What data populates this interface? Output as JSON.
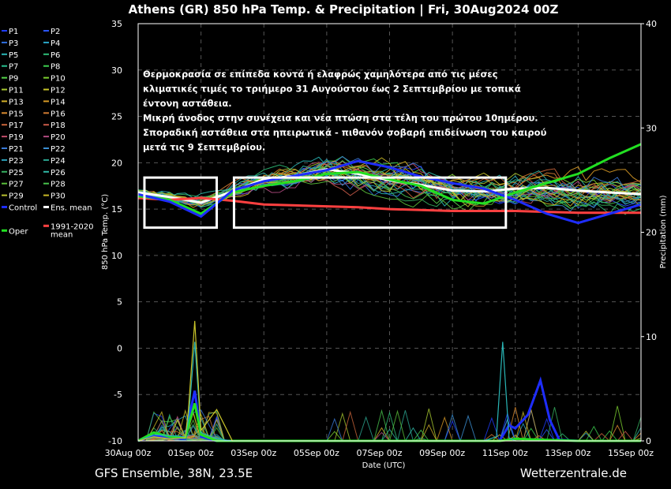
{
  "chart_data": {
    "type": "line",
    "title": "Athens  (GR)  850 hPa Temp. & Precipitation | Fri, 30Aug2024 00Z",
    "xlabel": "Date (UTC)",
    "ylabel": "850 hPa Temp. (°C)",
    "y2label": "Precipitation (mm)",
    "ylim": [
      -10,
      35
    ],
    "y2lim": [
      0,
      40
    ],
    "yticks": [
      "35",
      "30",
      "25",
      "20",
      "15",
      "10",
      "5",
      "0",
      "-5",
      "-10"
    ],
    "y2ticks": [
      "40",
      "30",
      "20",
      "10",
      "0"
    ],
    "xlim_days": [
      0,
      16
    ],
    "xticks": [
      "30Aug 00z",
      "01Sep 00z",
      "03Sep 00z",
      "05Sep 00z",
      "07Sep 00z",
      "09Sep 00z",
      "11Sep 00z",
      "13Sep 00z",
      "15Sep 00z"
    ],
    "grid": true,
    "legend": {
      "placement": "left",
      "entries": [
        {
          "name": "P1",
          "color": "#1f3dff"
        },
        {
          "name": "P2",
          "color": "#2a55ff"
        },
        {
          "name": "P3",
          "color": "#2f6fe0"
        },
        {
          "name": "P4",
          "color": "#2aa8c8"
        },
        {
          "name": "P5",
          "color": "#29b6b6"
        },
        {
          "name": "P6",
          "color": "#2ebd77"
        },
        {
          "name": "P7",
          "color": "#28c090"
        },
        {
          "name": "P8",
          "color": "#3ccf4f"
        },
        {
          "name": "P9",
          "color": "#55d64a"
        },
        {
          "name": "P10",
          "color": "#7ccf2f"
        },
        {
          "name": "P11",
          "color": "#a8c830"
        },
        {
          "name": "P12",
          "color": "#c9c52a"
        },
        {
          "name": "P13",
          "color": "#d2b028"
        },
        {
          "name": "P14",
          "color": "#d89a26"
        },
        {
          "name": "P15",
          "color": "#d98a2e"
        },
        {
          "name": "P16",
          "color": "#d07a32"
        },
        {
          "name": "P17",
          "color": "#c8643a"
        },
        {
          "name": "P18",
          "color": "#c85a48"
        },
        {
          "name": "P19",
          "color": "#c04d6a"
        },
        {
          "name": "P20",
          "color": "#b04a80"
        },
        {
          "name": "P21",
          "color": "#3a7ad8"
        },
        {
          "name": "P22",
          "color": "#3b8fd2"
        },
        {
          "name": "P23",
          "color": "#2b9fb8"
        },
        {
          "name": "P24",
          "color": "#2aa590"
        },
        {
          "name": "P25",
          "color": "#36b060"
        },
        {
          "name": "P26",
          "color": "#2fb8a6"
        },
        {
          "name": "P27",
          "color": "#5abf3a"
        },
        {
          "name": "P28",
          "color": "#48c24c"
        },
        {
          "name": "P29",
          "color": "#b8c030"
        },
        {
          "name": "P30",
          "color": "#c8b826"
        },
        {
          "name": "Control",
          "color": "#1e2dff"
        },
        {
          "name": "Ens. mean",
          "color": "#ffffff"
        },
        {
          "name": "Oper",
          "color": "#22e022"
        },
        {
          "name": "1991-2020 mean",
          "color": "#ff4040"
        }
      ]
    },
    "series": [
      {
        "name": "Ens. mean",
        "kind": "temp",
        "x": [
          0,
          1,
          2,
          3,
          4,
          5,
          6,
          7,
          8,
          9,
          10,
          11,
          12,
          13,
          14,
          15,
          16
        ],
        "y": [
          16.8,
          16.3,
          15.7,
          16.9,
          18.2,
          18.6,
          19.3,
          18.8,
          18.1,
          17.6,
          17.0,
          16.9,
          17.2,
          17.3,
          17.0,
          16.8,
          16.6
        ]
      },
      {
        "name": "1991-2020 mean",
        "kind": "temp",
        "x": [
          0,
          1,
          2,
          3,
          4,
          5,
          6,
          7,
          8,
          9,
          10,
          11,
          12,
          13,
          14,
          15,
          16
        ],
        "y": [
          16.2,
          16.0,
          16.2,
          15.9,
          15.5,
          15.4,
          15.3,
          15.2,
          15.0,
          14.9,
          14.8,
          14.8,
          14.8,
          14.7,
          14.6,
          14.6,
          14.6
        ]
      },
      {
        "name": "Oper",
        "kind": "temp",
        "x": [
          0,
          1,
          2,
          3,
          4,
          5,
          6,
          7,
          8,
          9,
          10,
          11,
          12,
          13,
          14,
          15,
          16
        ],
        "y": [
          16.4,
          16.0,
          14.5,
          16.8,
          17.5,
          18.0,
          18.8,
          19.0,
          18.2,
          17.5,
          16.0,
          15.6,
          16.8,
          17.8,
          18.8,
          20.5,
          22.0
        ]
      },
      {
        "name": "Control",
        "kind": "temp",
        "x": [
          0,
          1,
          2,
          3,
          4,
          5,
          6,
          7,
          8,
          9,
          10,
          11,
          12,
          13,
          14,
          15,
          16
        ],
        "y": [
          16.6,
          15.8,
          14.2,
          17.0,
          18.0,
          18.6,
          19.2,
          20.2,
          19.5,
          18.5,
          17.8,
          17.2,
          16.0,
          14.5,
          13.5,
          14.5,
          15.5
        ]
      },
      {
        "name": "Control precip",
        "kind": "precip",
        "x": [
          0,
          0.5,
          1,
          1.5,
          1.6,
          1.8,
          2,
          2.5,
          3,
          10,
          11.5,
          11.8,
          12,
          12.4,
          12.8,
          13.1,
          13.4,
          14,
          15,
          16
        ],
        "y": [
          0,
          0.5,
          0.3,
          0.2,
          2,
          4.8,
          0.4,
          0,
          0,
          0,
          0,
          1.5,
          1.2,
          2.5,
          5.8,
          2,
          0.1,
          0,
          0,
          0
        ]
      },
      {
        "name": "Oper precip",
        "kind": "precip",
        "x": [
          0,
          0.5,
          1,
          1.5,
          1.6,
          1.8,
          2,
          2.5,
          3,
          8,
          11.5,
          12,
          13,
          14,
          15,
          16
        ],
        "y": [
          0,
          0.8,
          0.4,
          0.3,
          1.5,
          3.6,
          0.6,
          0,
          0,
          0,
          0,
          0.2,
          0.1,
          0,
          0,
          0
        ]
      },
      {
        "name": "P5 precip",
        "kind": "precip",
        "x": [
          0,
          0.5,
          1,
          1.5,
          1.6,
          1.8,
          2,
          2.5,
          3,
          10,
          11,
          11.4,
          11.6,
          11.8,
          12,
          13,
          14,
          15,
          16
        ],
        "y": [
          0,
          0.6,
          0.5,
          0.4,
          2,
          9.5,
          0.8,
          0.2,
          0,
          0,
          0,
          0.4,
          9.5,
          0.3,
          0,
          0,
          0,
          0,
          0
        ]
      },
      {
        "name": "P12 precip",
        "kind": "precip",
        "x": [
          0,
          0.5,
          1,
          1.5,
          1.6,
          1.8,
          2,
          2.5,
          3,
          4,
          16
        ],
        "y": [
          0,
          0.4,
          0.2,
          0.3,
          3,
          11.5,
          1.0,
          3.0,
          0,
          0,
          0
        ]
      }
    ],
    "annotations": [
      "Θερμοκρασία σε επίπεδα κοντά ή ελαφρώς χαμηλότερα από τις μέσες",
      "κλιματικές τιμές το τριήμερο 31 Αυγούστου έως 2 Σεπτεμβρίου με  τοπικά",
      "έντονη αστάθεια.",
      "Μικρή άνοδος στην συνέχεια και νέα πτώση στα τέλη του πρώτου 10ημέρου.",
      "Σποραδική αστάθεια στα ηπειρωτικά - πιθανόν σοβαρή επιδείνωση του καιρού",
      "μετά τις 9 Σεπτεμβρίου."
    ],
    "highlight_boxes_days": [
      [
        0.2,
        2.5
      ],
      [
        3.05,
        11.7
      ]
    ],
    "footer_left": "GFS Ensemble, 38N, 23.5E",
    "footer_right": "Wetterzentrale.de"
  }
}
